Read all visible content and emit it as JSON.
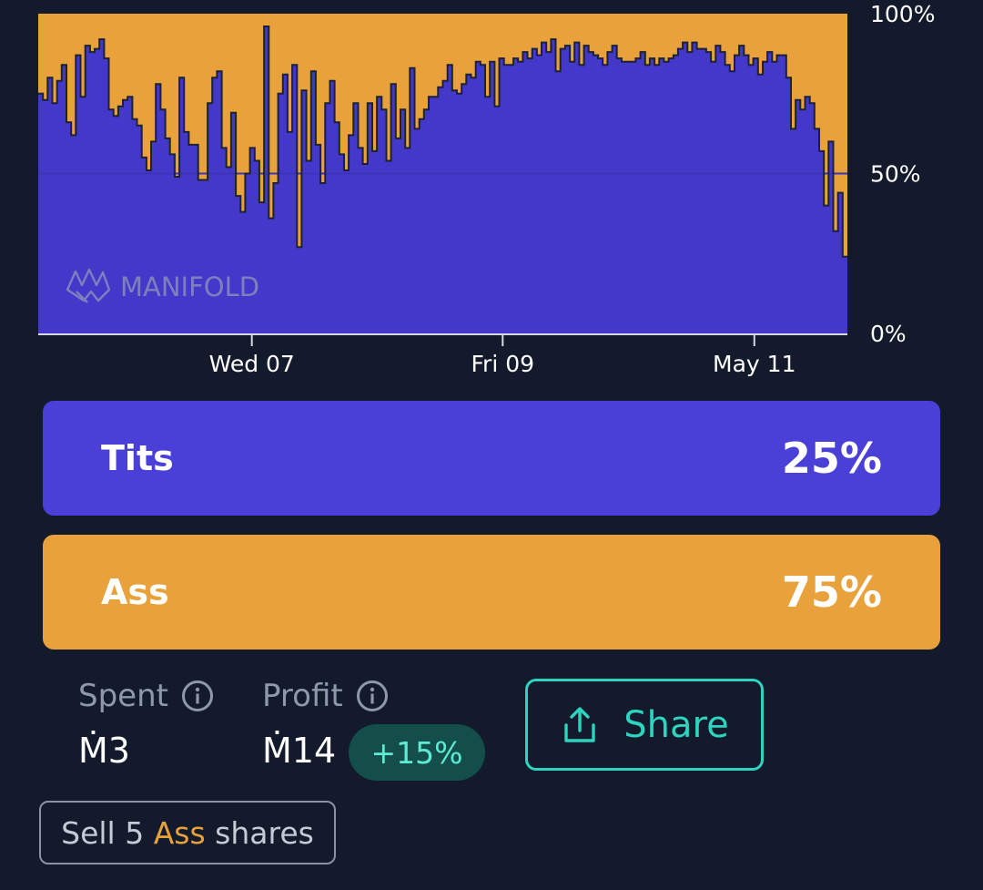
{
  "chart_data": {
    "type": "area",
    "y_tick_labels": [
      "100%",
      "50%",
      "0%"
    ],
    "x_tick_labels": [
      "Wed 07",
      "Fri 09",
      "May 11"
    ],
    "ylim": [
      0,
      100
    ],
    "watermark": "MANIFOLD",
    "grid": false,
    "series": [
      {
        "name": "Tits",
        "color": "#4338ca"
      },
      {
        "name": "Ass",
        "color": "#e9a23b"
      }
    ],
    "tits_probability_percent": [
      75,
      73,
      80,
      72,
      79,
      84,
      66,
      62,
      87,
      74,
      90,
      88,
      89,
      92,
      86,
      70,
      68,
      71,
      73,
      74,
      67,
      65,
      55,
      51,
      60,
      78,
      70,
      61,
      56,
      49,
      80,
      63,
      59,
      59,
      48,
      48,
      72,
      80,
      82,
      58,
      52,
      69,
      43,
      38,
      50,
      58,
      54,
      41,
      96,
      36,
      47,
      75,
      81,
      63,
      84,
      27,
      76,
      54,
      82,
      59,
      47,
      72,
      79,
      66,
      56,
      51,
      62,
      72,
      58,
      53,
      72,
      57,
      74,
      70,
      54,
      78,
      61,
      70,
      58,
      83,
      64,
      67,
      70,
      74,
      74,
      77,
      79,
      84,
      76,
      75,
      78,
      81,
      80,
      85,
      84,
      74,
      85,
      71,
      86,
      84,
      84,
      86,
      85,
      88,
      86,
      89,
      87,
      91,
      88,
      92,
      82,
      89,
      90,
      85,
      91,
      84,
      90,
      88,
      87,
      86,
      84,
      88,
      90,
      86,
      85,
      85,
      85,
      86,
      88,
      84,
      86,
      84,
      86,
      85,
      86,
      87,
      89,
      91,
      88,
      91,
      89,
      89,
      88,
      85,
      90,
      88,
      84,
      82,
      87,
      90,
      87,
      84,
      86,
      81,
      85,
      88,
      85,
      87,
      87,
      80,
      64,
      73,
      70,
      74,
      72,
      64,
      57,
      40,
      60,
      32,
      44,
      24
    ]
  },
  "answers": [
    {
      "label": "Tits",
      "percent": "25%",
      "color": "#4a40d8"
    },
    {
      "label": "Ass",
      "percent": "75%",
      "color": "#e9a23b"
    }
  ],
  "stats": {
    "spent": {
      "label": "Spent",
      "value": "Ṁ3"
    },
    "profit": {
      "label": "Profit",
      "value": "Ṁ14",
      "change": "+15%"
    }
  },
  "share": {
    "label": "Share",
    "icon": "share-icon"
  },
  "sell": {
    "prefix": "Sell 5 ",
    "answer": "Ass",
    "suffix": " shares"
  }
}
